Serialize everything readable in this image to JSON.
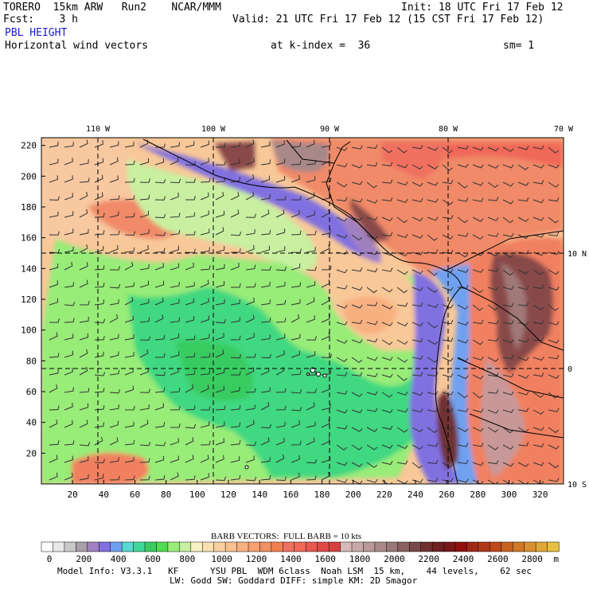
{
  "header": {
    "model": "TORERO  15km ARW   Run2    NCAR/MMM",
    "init": "Init: 18 UTC Fri 17 Feb 12",
    "fcst": "Fcst:    3 h",
    "valid": "Valid: 21 UTC Fri 17 Feb 12 (15 CST Fri 17 Feb 12)",
    "field": "PBL HEIGHT",
    "vectors": "Horizontal wind vectors",
    "kindex": "at k-index =  36",
    "smooth": "sm= 1"
  },
  "chart_data": {
    "type": "heatmap",
    "title": "PBL HEIGHT",
    "x_ticks": [
      20,
      40,
      60,
      80,
      100,
      120,
      140,
      160,
      180,
      200,
      220,
      240,
      260,
      280,
      300,
      320
    ],
    "y_ticks": [
      20,
      40,
      60,
      80,
      100,
      120,
      140,
      160,
      180,
      200,
      220
    ],
    "xlim": [
      0,
      335
    ],
    "ylim": [
      0,
      225
    ],
    "lon_labels": [
      "110 W",
      "100 W",
      "90 W",
      "80 W",
      "70 W"
    ],
    "lat_labels": [
      "10 N",
      "0",
      "10 S"
    ],
    "colorbar_ticks": [
      "0",
      "200",
      "400",
      "600",
      "800",
      "1000",
      "1200",
      "1400",
      "1600",
      "1800",
      "2000",
      "2200",
      "2400",
      "2600",
      "2800"
    ],
    "colorbar_unit": "m",
    "colorbar_colors": [
      "#ffffff",
      "#e8e8e8",
      "#c8c8c8",
      "#a8a0a8",
      "#a080c0",
      "#8070e0",
      "#6fa0f0",
      "#58d8d0",
      "#40d898",
      "#38cc60",
      "#50dc50",
      "#98ec78",
      "#c8f0a0",
      "#f8f0c0",
      "#f8e0b0",
      "#f8d0a0",
      "#f8c090",
      "#f8b080",
      "#f8a070",
      "#f09060",
      "#f08050",
      "#f07060",
      "#f06858",
      "#e85850",
      "#e04848",
      "#d84040",
      "#d8b8b8",
      "#c8a8a8",
      "#b89898",
      "#a88888",
      "#987878",
      "#886060",
      "#784848",
      "#703030",
      "#702020",
      "#781818",
      "#901010",
      "#a02818",
      "#b03818",
      "#c04818",
      "#c86020",
      "#d07828",
      "#d89030",
      "#e0a838",
      "#e8c040"
    ],
    "grid": true
  },
  "footer": {
    "barb": "BARB VECTORS:  FULL BARB = 10 kts",
    "model_info": "Model Info: V3.3.1   KF      YSU PBL  WDM 6class  Noah LSM  15 km,    44 levels,    62 sec",
    "physics": "LW: Godd SW: Goddard DIFF: simple KM: 2D Smagor"
  }
}
